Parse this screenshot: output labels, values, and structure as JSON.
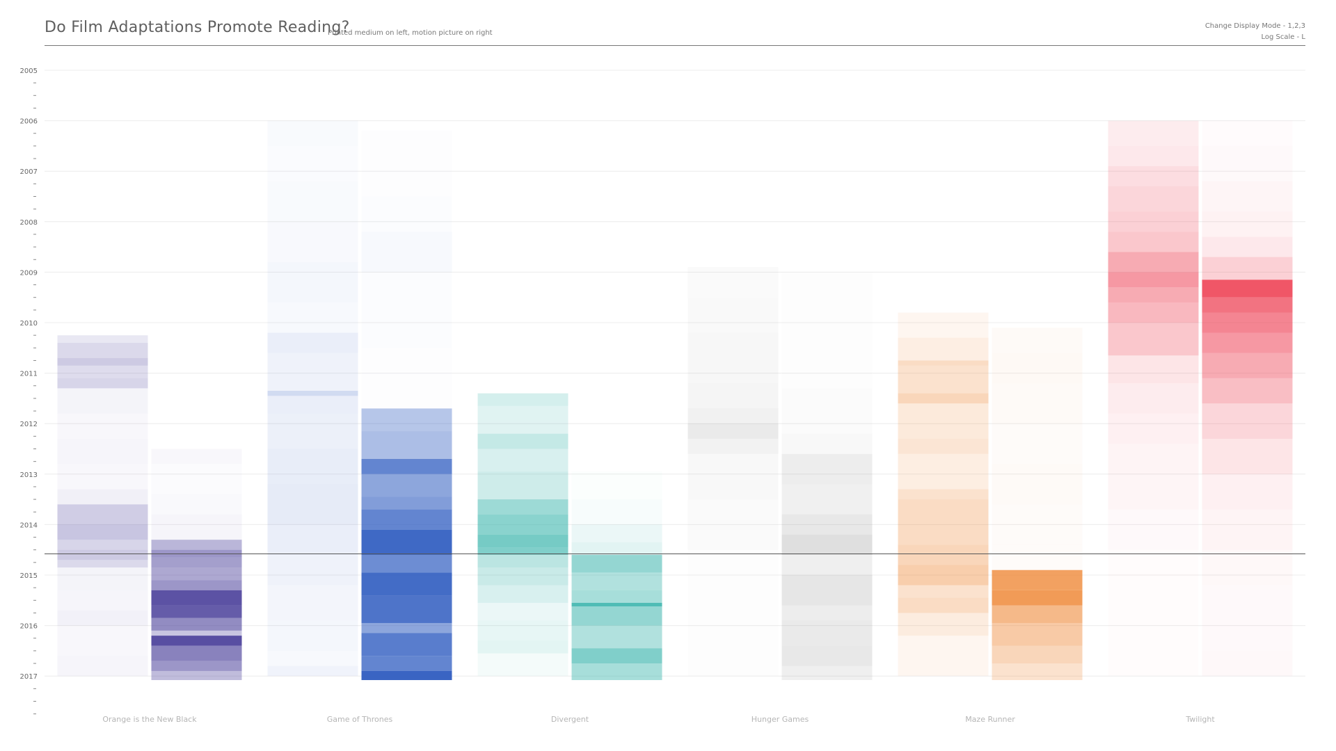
{
  "header": {
    "title": "Do Film Adaptations Promote Reading?",
    "subtitle": "Printed medium on left, motion picture on right",
    "hint_mode": "Change Display Mode - 1,2,3",
    "hint_log": "Log Scale - L"
  },
  "chart_data": {
    "type": "heatmap",
    "title": "Do Film Adaptations Promote Reading?",
    "subtitle": "Printed medium on left, motion picture on right",
    "y_axis": {
      "years": [
        "2005",
        "2006",
        "2007",
        "2008",
        "2009",
        "2010",
        "2011",
        "2012",
        "2013",
        "2014",
        "2015",
        "2016",
        "2017"
      ],
      "direction": "top-to-bottom",
      "grid": true,
      "minor_ticks_per_year": 3
    },
    "reference_line": 2014.58,
    "categories": [
      {
        "name": "Orange is the New Black",
        "color": "#4a3f9a",
        "book": [
          [
            2010.25,
            2010.4,
            0.12
          ],
          [
            2010.4,
            2010.7,
            0.2
          ],
          [
            2010.7,
            2010.85,
            0.28
          ],
          [
            2010.85,
            2011.1,
            0.18
          ],
          [
            2011.1,
            2011.3,
            0.22
          ],
          [
            2011.3,
            2011.8,
            0.06
          ],
          [
            2011.8,
            2012.3,
            0.04
          ],
          [
            2012.3,
            2012.8,
            0.05
          ],
          [
            2012.8,
            2013.3,
            0.04
          ],
          [
            2013.3,
            2013.6,
            0.08
          ],
          [
            2013.6,
            2014.0,
            0.26
          ],
          [
            2014.0,
            2014.3,
            0.3
          ],
          [
            2014.3,
            2014.5,
            0.22
          ],
          [
            2014.5,
            2014.7,
            0.28
          ],
          [
            2014.7,
            2014.85,
            0.2
          ],
          [
            2014.85,
            2015.3,
            0.06
          ],
          [
            2015.3,
            2015.7,
            0.05
          ],
          [
            2015.7,
            2016.0,
            0.07
          ],
          [
            2016.0,
            2016.6,
            0.04
          ],
          [
            2016.6,
            2017.0,
            0.05
          ]
        ],
        "film": [
          [
            2012.5,
            2012.8,
            0.04
          ],
          [
            2012.8,
            2013.4,
            0.02
          ],
          [
            2013.4,
            2013.8,
            0.03
          ],
          [
            2013.8,
            2014.3,
            0.05
          ],
          [
            2014.3,
            2014.5,
            0.38
          ],
          [
            2014.5,
            2014.65,
            0.55
          ],
          [
            2014.65,
            2014.85,
            0.5
          ],
          [
            2014.85,
            2015.1,
            0.45
          ],
          [
            2015.1,
            2015.3,
            0.55
          ],
          [
            2015.3,
            2015.6,
            0.9
          ],
          [
            2015.6,
            2015.85,
            0.85
          ],
          [
            2015.85,
            2016.1,
            0.6
          ],
          [
            2016.1,
            2016.2,
            0.3
          ],
          [
            2016.2,
            2016.4,
            0.92
          ],
          [
            2016.4,
            2016.7,
            0.65
          ],
          [
            2016.7,
            2016.9,
            0.55
          ],
          [
            2016.9,
            2017.08,
            0.35
          ]
        ]
      },
      {
        "name": "Game of Thrones",
        "color": "#2f5cc0",
        "book": [
          [
            2006.0,
            2006.5,
            0.03
          ],
          [
            2006.5,
            2007.2,
            0.025
          ],
          [
            2007.2,
            2008.0,
            0.03
          ],
          [
            2008.0,
            2008.8,
            0.035
          ],
          [
            2008.8,
            2009.6,
            0.05
          ],
          [
            2009.6,
            2010.2,
            0.04
          ],
          [
            2010.2,
            2010.6,
            0.1
          ],
          [
            2010.6,
            2011.35,
            0.08
          ],
          [
            2011.35,
            2011.45,
            0.22
          ],
          [
            2011.45,
            2011.8,
            0.1
          ],
          [
            2011.8,
            2012.5,
            0.09
          ],
          [
            2012.5,
            2013.2,
            0.11
          ],
          [
            2013.2,
            2014.0,
            0.12
          ],
          [
            2014.0,
            2014.6,
            0.1
          ],
          [
            2014.6,
            2015.2,
            0.08
          ],
          [
            2015.2,
            2015.9,
            0.06
          ],
          [
            2015.9,
            2016.5,
            0.05
          ],
          [
            2016.5,
            2016.8,
            0.04
          ],
          [
            2016.8,
            2017.0,
            0.07
          ]
        ],
        "film": [
          [
            2006.2,
            2007.5,
            0.01
          ],
          [
            2007.5,
            2008.2,
            0.02
          ],
          [
            2008.2,
            2009.0,
            0.04
          ],
          [
            2009.0,
            2010.5,
            0.02
          ],
          [
            2010.5,
            2011.7,
            0.01
          ],
          [
            2011.7,
            2012.15,
            0.35
          ],
          [
            2012.15,
            2012.7,
            0.4
          ],
          [
            2012.7,
            2013.0,
            0.75
          ],
          [
            2013.0,
            2013.45,
            0.55
          ],
          [
            2013.45,
            2013.7,
            0.6
          ],
          [
            2013.7,
            2014.1,
            0.75
          ],
          [
            2014.1,
            2014.6,
            0.92
          ],
          [
            2014.6,
            2014.95,
            0.7
          ],
          [
            2014.95,
            2015.4,
            0.9
          ],
          [
            2015.4,
            2015.95,
            0.85
          ],
          [
            2015.95,
            2016.15,
            0.55
          ],
          [
            2016.15,
            2016.6,
            0.8
          ],
          [
            2016.6,
            2016.9,
            0.75
          ],
          [
            2016.9,
            2017.08,
            0.95
          ]
        ]
      },
      {
        "name": "Divergent",
        "color": "#3cb5ad",
        "book": [
          [
            2011.4,
            2011.65,
            0.22
          ],
          [
            2011.65,
            2012.2,
            0.16
          ],
          [
            2012.2,
            2012.5,
            0.3
          ],
          [
            2012.5,
            2012.95,
            0.2
          ],
          [
            2012.95,
            2013.5,
            0.25
          ],
          [
            2013.5,
            2013.8,
            0.5
          ],
          [
            2013.8,
            2014.2,
            0.6
          ],
          [
            2014.2,
            2014.45,
            0.7
          ],
          [
            2014.45,
            2014.6,
            0.65
          ],
          [
            2014.6,
            2014.85,
            0.35
          ],
          [
            2014.85,
            2015.2,
            0.28
          ],
          [
            2015.2,
            2015.55,
            0.2
          ],
          [
            2015.55,
            2015.9,
            0.1
          ],
          [
            2015.9,
            2016.3,
            0.12
          ],
          [
            2016.3,
            2016.55,
            0.14
          ],
          [
            2016.55,
            2017.0,
            0.06
          ]
        ],
        "film": [
          [
            2012.95,
            2013.5,
            0.02
          ],
          [
            2013.5,
            2014.0,
            0.04
          ],
          [
            2014.0,
            2014.35,
            0.1
          ],
          [
            2014.35,
            2014.6,
            0.15
          ],
          [
            2014.6,
            2014.95,
            0.55
          ],
          [
            2014.95,
            2015.3,
            0.4
          ],
          [
            2015.3,
            2015.55,
            0.45
          ],
          [
            2015.55,
            2015.62,
            0.9
          ],
          [
            2015.62,
            2016.0,
            0.55
          ],
          [
            2016.0,
            2016.45,
            0.4
          ],
          [
            2016.45,
            2016.75,
            0.65
          ],
          [
            2016.75,
            2017.08,
            0.45
          ]
        ]
      },
      {
        "name": "Hunger Games",
        "color": "#8c8c8c",
        "book": [
          [
            2008.9,
            2009.5,
            0.04
          ],
          [
            2009.5,
            2010.2,
            0.05
          ],
          [
            2010.2,
            2011.2,
            0.07
          ],
          [
            2011.2,
            2011.7,
            0.09
          ],
          [
            2011.7,
            2012.0,
            0.12
          ],
          [
            2012.0,
            2012.3,
            0.18
          ],
          [
            2012.3,
            2012.6,
            0.11
          ],
          [
            2012.6,
            2013.5,
            0.06
          ],
          [
            2013.5,
            2014.5,
            0.04
          ],
          [
            2014.5,
            2015.0,
            0.02
          ],
          [
            2015.0,
            2017.0,
            0.015
          ]
        ],
        "film": [
          [
            2009.0,
            2010.0,
            0.015
          ],
          [
            2010.0,
            2011.3,
            0.02
          ],
          [
            2011.3,
            2012.2,
            0.03
          ],
          [
            2012.2,
            2012.6,
            0.06
          ],
          [
            2012.6,
            2013.2,
            0.16
          ],
          [
            2013.2,
            2013.8,
            0.13
          ],
          [
            2013.8,
            2014.2,
            0.2
          ],
          [
            2014.2,
            2014.6,
            0.28
          ],
          [
            2014.6,
            2015.0,
            0.14
          ],
          [
            2015.0,
            2015.6,
            0.22
          ],
          [
            2015.6,
            2015.9,
            0.16
          ],
          [
            2015.9,
            2016.4,
            0.18
          ],
          [
            2016.4,
            2016.8,
            0.2
          ],
          [
            2016.8,
            2017.08,
            0.14
          ]
        ]
      },
      {
        "name": "Maze Runner",
        "color": "#ef8a3a",
        "book": [
          [
            2009.8,
            2010.3,
            0.08
          ],
          [
            2010.3,
            2010.75,
            0.14
          ],
          [
            2010.75,
            2010.85,
            0.3
          ],
          [
            2010.85,
            2011.4,
            0.25
          ],
          [
            2011.4,
            2011.6,
            0.35
          ],
          [
            2011.6,
            2012.3,
            0.18
          ],
          [
            2012.3,
            2012.6,
            0.22
          ],
          [
            2012.6,
            2013.3,
            0.15
          ],
          [
            2013.3,
            2013.5,
            0.25
          ],
          [
            2013.5,
            2014.4,
            0.3
          ],
          [
            2014.4,
            2014.8,
            0.35
          ],
          [
            2014.8,
            2015.2,
            0.42
          ],
          [
            2015.2,
            2015.45,
            0.25
          ],
          [
            2015.45,
            2015.75,
            0.3
          ],
          [
            2015.75,
            2016.2,
            0.16
          ],
          [
            2016.2,
            2017.0,
            0.08
          ]
        ],
        "film": [
          [
            2010.1,
            2010.6,
            0.04
          ],
          [
            2010.6,
            2011.2,
            0.05
          ],
          [
            2011.2,
            2012.0,
            0.04
          ],
          [
            2012.0,
            2012.8,
            0.03
          ],
          [
            2012.8,
            2013.6,
            0.04
          ],
          [
            2013.6,
            2014.4,
            0.03
          ],
          [
            2014.4,
            2014.9,
            0.03
          ],
          [
            2014.9,
            2015.3,
            0.8
          ],
          [
            2015.3,
            2015.6,
            0.85
          ],
          [
            2015.6,
            2015.95,
            0.6
          ],
          [
            2015.95,
            2016.4,
            0.45
          ],
          [
            2016.4,
            2016.75,
            0.35
          ],
          [
            2016.75,
            2017.08,
            0.25
          ]
        ]
      },
      {
        "name": "Twilight",
        "color": "#ee4457",
        "book": [
          [
            2006.0,
            2006.5,
            0.1
          ],
          [
            2006.5,
            2006.9,
            0.12
          ],
          [
            2006.9,
            2007.3,
            0.18
          ],
          [
            2007.3,
            2007.8,
            0.22
          ],
          [
            2007.8,
            2008.2,
            0.25
          ],
          [
            2008.2,
            2008.6,
            0.3
          ],
          [
            2008.6,
            2009.0,
            0.45
          ],
          [
            2009.0,
            2009.3,
            0.55
          ],
          [
            2009.3,
            2009.6,
            0.45
          ],
          [
            2009.6,
            2010.0,
            0.38
          ],
          [
            2010.0,
            2010.65,
            0.3
          ],
          [
            2010.65,
            2011.2,
            0.14
          ],
          [
            2011.2,
            2011.8,
            0.1
          ],
          [
            2011.8,
            2012.4,
            0.08
          ],
          [
            2012.4,
            2013.0,
            0.06
          ],
          [
            2013.0,
            2013.7,
            0.05
          ],
          [
            2013.7,
            2014.5,
            0.03
          ],
          [
            2014.5,
            2017.0,
            0.015
          ]
        ],
        "film": [
          [
            2006.0,
            2006.5,
            0.02
          ],
          [
            2006.5,
            2007.2,
            0.03
          ],
          [
            2007.2,
            2007.8,
            0.05
          ],
          [
            2007.8,
            2008.3,
            0.07
          ],
          [
            2008.3,
            2008.7,
            0.12
          ],
          [
            2008.7,
            2009.15,
            0.25
          ],
          [
            2009.15,
            2009.5,
            0.9
          ],
          [
            2009.5,
            2009.8,
            0.75
          ],
          [
            2009.8,
            2010.2,
            0.65
          ],
          [
            2010.2,
            2010.6,
            0.55
          ],
          [
            2010.6,
            2011.1,
            0.45
          ],
          [
            2011.1,
            2011.6,
            0.35
          ],
          [
            2011.6,
            2012.3,
            0.22
          ],
          [
            2012.3,
            2013.0,
            0.14
          ],
          [
            2013.0,
            2013.7,
            0.08
          ],
          [
            2013.7,
            2014.5,
            0.06
          ],
          [
            2014.5,
            2015.2,
            0.04
          ],
          [
            2015.2,
            2016.5,
            0.03
          ],
          [
            2016.5,
            2017.0,
            0.035
          ]
        ]
      }
    ]
  }
}
